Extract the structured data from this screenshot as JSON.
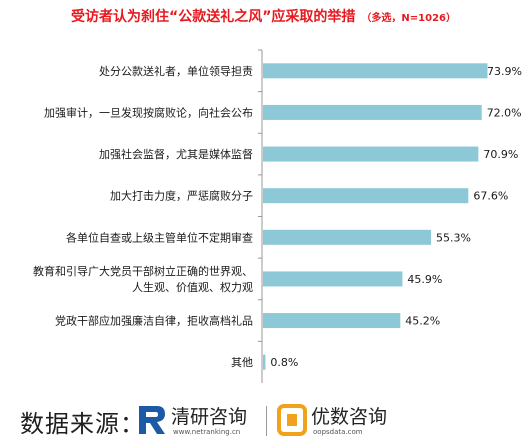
{
  "chart_data": {
    "type": "bar",
    "orientation": "horizontal",
    "title": "受访者认为刹住“公款送礼之风”应采取的举措",
    "subtitle": "（多选，N=1026）",
    "categories": [
      "处分公款送礼者，单位领导担责",
      "加强审计，一旦发现按腐败论，向社会公布",
      "加强社会监督，尤其是媒体监督",
      "加大打击力度，严惩腐败分子",
      "各单位自查或上级主管单位不定期审查",
      "教育和引导广大党员干部树立正确的世界观、\n人生观、价值观、权力观",
      "党政干部应加强廉洁自律，拒收高档礼品",
      "其他"
    ],
    "values": [
      73.9,
      72.0,
      70.9,
      67.6,
      55.3,
      45.9,
      45.2,
      0.8
    ],
    "value_labels": [
      "73.9%",
      "72.0%",
      "70.9%",
      "67.6%",
      "55.3%",
      "45.9%",
      "45.2%",
      "0.8%"
    ],
    "unit": "%",
    "xlim": [
      0,
      80
    ],
    "grid": false,
    "legend": "none",
    "bar_color": "#8dc8d6"
  },
  "footer": {
    "source_label": "数据来源：",
    "logo1": {
      "name": "清研咨询",
      "url": "www.netranking.cn"
    },
    "logo2": {
      "name": "优数咨询",
      "url": "oopsdata.com"
    }
  },
  "colors": {
    "title": "#e8191e",
    "axis": "#9a9a9a",
    "logo1_mark": "#1d5aa6",
    "logo2_mark": "#f0a21a"
  }
}
